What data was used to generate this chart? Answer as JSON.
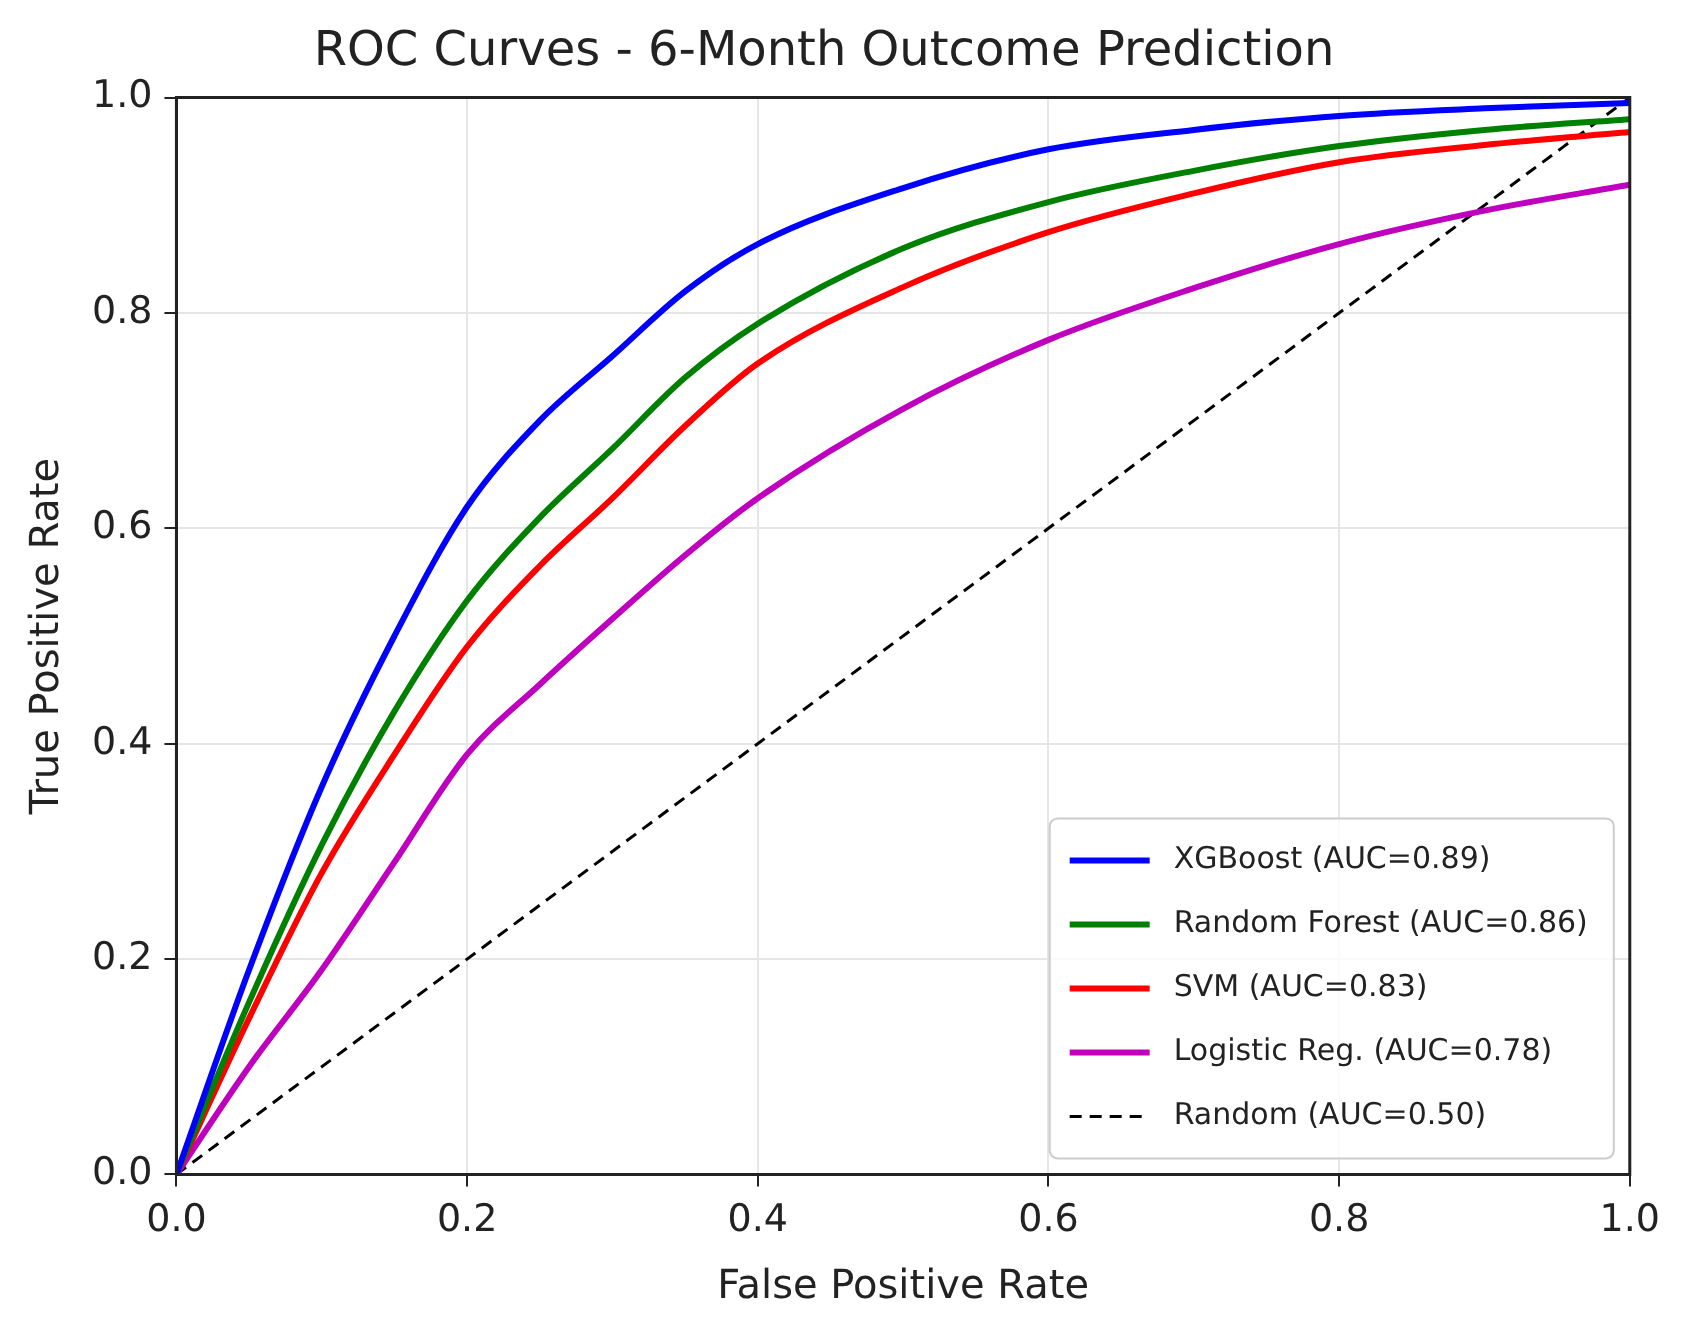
{
  "chart_data": {
    "type": "line",
    "title": "ROC Curves - 6-Month Outcome Prediction",
    "xlabel": "False Positive Rate",
    "ylabel": "True Positive Rate",
    "xlim": [
      0,
      1
    ],
    "ylim": [
      0,
      1
    ],
    "xticks": [
      {
        "value": 0,
        "label": "0.0"
      },
      0.2,
      0.4,
      0.6,
      0.8,
      {
        "value": 1,
        "label": "1.0"
      }
    ],
    "yticks": [
      {
        "value": 0,
        "label": "0.0"
      },
      0.2,
      0.4,
      0.6,
      0.8,
      {
        "value": 1,
        "label": "1.0"
      }
    ],
    "grid": true,
    "legend": "bottom right",
    "marker": "none",
    "series": [
      {
        "name": "XGBoost (AUC=0.89)",
        "color": "#0000ff",
        "x": [
          0,
          0.05,
          0.1,
          0.15,
          0.2,
          0.25,
          0.3,
          0.35,
          0.4,
          0.5,
          0.6,
          0.7,
          0.8,
          0.9,
          1
        ],
        "values": [
          0,
          0.19,
          0.36,
          0.5,
          0.62,
          0.7,
          0.76,
          0.82,
          0.864,
          0.916,
          0.952,
          0.97,
          0.983,
          0.99,
          0.995
        ]
      },
      {
        "name": "Random Forest (AUC=0.86)",
        "color": "#008000",
        "x": [
          0,
          0.05,
          0.1,
          0.15,
          0.2,
          0.25,
          0.3,
          0.35,
          0.4,
          0.5,
          0.6,
          0.7,
          0.8,
          0.9,
          1
        ],
        "values": [
          0,
          0.16,
          0.306,
          0.43,
          0.533,
          0.61,
          0.674,
          0.74,
          0.79,
          0.86,
          0.903,
          0.932,
          0.955,
          0.97,
          0.98
        ]
      },
      {
        "name": "SVM (AUC=0.83)",
        "color": "#ff0000",
        "x": [
          0,
          0.05,
          0.1,
          0.15,
          0.2,
          0.25,
          0.3,
          0.35,
          0.4,
          0.5,
          0.6,
          0.7,
          0.8,
          0.9,
          1
        ],
        "values": [
          0,
          0.145,
          0.28,
          0.39,
          0.49,
          0.565,
          0.628,
          0.695,
          0.753,
          0.824,
          0.875,
          0.911,
          0.94,
          0.956,
          0.968
        ]
      },
      {
        "name": "Logistic Reg. (AUC=0.78)",
        "color": "#bf00bf",
        "x": [
          0,
          0.05,
          0.1,
          0.15,
          0.2,
          0.25,
          0.3,
          0.35,
          0.4,
          0.5,
          0.6,
          0.7,
          0.8,
          0.9,
          1
        ],
        "values": [
          0,
          0.1,
          0.19,
          0.29,
          0.39,
          0.455,
          0.516,
          0.575,
          0.628,
          0.711,
          0.775,
          0.823,
          0.864,
          0.895,
          0.919
        ]
      },
      {
        "name": "Random (AUC=0.50)",
        "color": "#000000",
        "line_style": "dashed",
        "x": [
          0,
          1
        ],
        "values": [
          0,
          1
        ]
      }
    ]
  }
}
